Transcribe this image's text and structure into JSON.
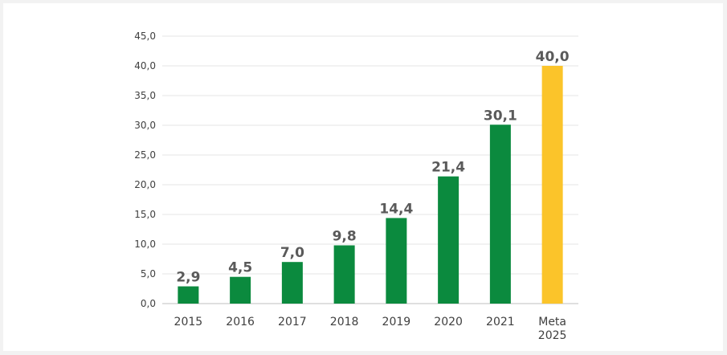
{
  "chart_data": {
    "type": "bar",
    "title": "",
    "xlabel": "",
    "ylabel": "",
    "ylim": [
      0,
      45
    ],
    "ytick_step": 5,
    "ytick_labels": [
      "0,0",
      "5,0",
      "10,0",
      "15,0",
      "20,0",
      "25,0",
      "30,0",
      "35,0",
      "40,0",
      "45,0"
    ],
    "grid": true,
    "legend": "none",
    "categories": [
      [
        "2015"
      ],
      [
        "2016"
      ],
      [
        "2017"
      ],
      [
        "2018"
      ],
      [
        "2019"
      ],
      [
        "2020"
      ],
      [
        "2021"
      ],
      [
        "Meta",
        "2025"
      ]
    ],
    "values": [
      2.9,
      4.5,
      7.0,
      9.8,
      14.4,
      21.4,
      30.1,
      40.0
    ],
    "value_labels": [
      "2,9",
      "4,5",
      "7,0",
      "9,8",
      "14,4",
      "21,4",
      "30,1",
      "40,0"
    ],
    "bar_colors": [
      "#0b8a3e",
      "#0b8a3e",
      "#0b8a3e",
      "#0b8a3e",
      "#0b8a3e",
      "#0b8a3e",
      "#0b8a3e",
      "#fbc42a"
    ]
  },
  "colors": {
    "actual": "#0b8a3e",
    "target": "#fbc42a",
    "grid": "#e6e6e6",
    "axis": "#bfbfbf"
  }
}
